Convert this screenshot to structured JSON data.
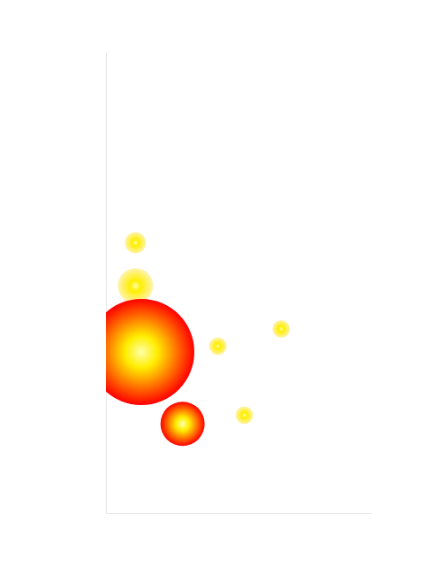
{
  "chart_data": {
    "type": "bubble",
    "x": [
      1.0,
      1.0,
      1.2,
      2.6,
      3.8,
      5.95,
      4.7
    ],
    "values": [
      9.4,
      7.9,
      5.6,
      3.1,
      5.8,
      6.4,
      3.4
    ],
    "sizes": [
      12,
      20,
      60,
      25,
      10,
      10,
      10
    ],
    "colors": [
      "#fff3b0",
      "#fff3b0",
      "#ff0000",
      "#ff0000",
      "#fff3b0",
      "#fff3b0",
      "#fff3b0"
    ],
    "xlim": [
      0,
      9
    ],
    "ylim": [
      0,
      16
    ],
    "grid": false,
    "tick_labels": false
  }
}
